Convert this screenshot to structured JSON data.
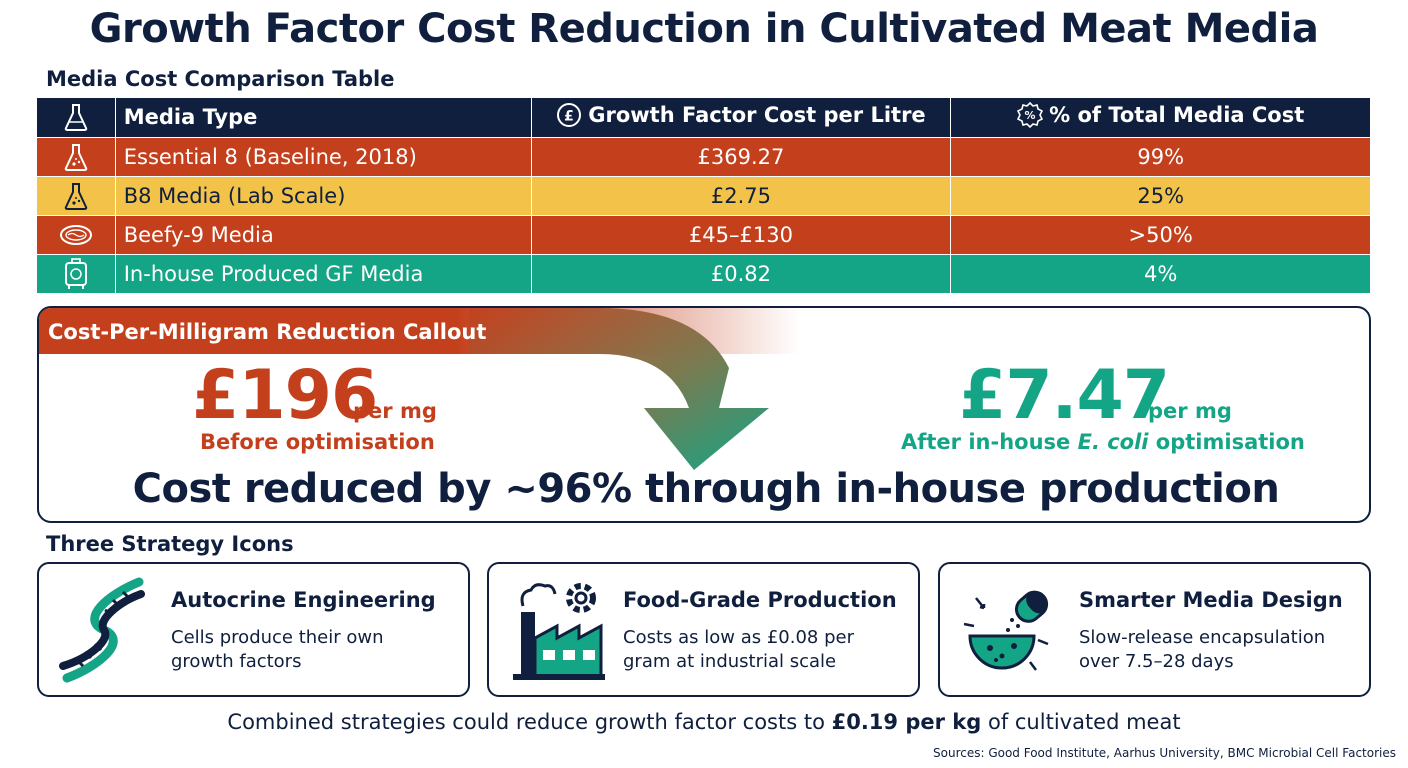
{
  "title": "Growth Factor Cost Reduction in Cultivated Meat Media",
  "table": {
    "heading": "Media Cost Comparison Table",
    "columns": {
      "type": "Media Type",
      "cost": "Growth Factor Cost per Litre",
      "percent": "% of Total Media Cost"
    },
    "rows": [
      {
        "type": "Essential 8 (Baseline, 2018)",
        "cost": "£369.27",
        "percent": "99%",
        "color": "#c4401d",
        "icon": "flask-icon"
      },
      {
        "type": "B8 Media (Lab Scale)",
        "cost": "£2.75",
        "percent": "25%",
        "color": "#f2c348",
        "icon": "flask-icon"
      },
      {
        "type": "Beefy-9 Media",
        "cost": "£45–£130",
        "percent": ">50%",
        "color": "#c4401d",
        "icon": "petri-dish-icon"
      },
      {
        "type": "In-house Produced GF Media",
        "cost": "£0.82",
        "percent": "4%",
        "color": "#14a586",
        "icon": "bioreactor-icon"
      }
    ]
  },
  "callout": {
    "heading": "Cost-Per-Milligram Reduction Callout",
    "before": {
      "price": "£196",
      "unit": "per mg",
      "label": "Before optimisation"
    },
    "after": {
      "price": "£7.47",
      "unit": "per mg",
      "label_pre": "After in-house ",
      "label_em": "E. coli",
      "label_post": " optimisation"
    },
    "summary": "Cost reduced by ~96% through in-house production"
  },
  "strategies": {
    "heading": "Three Strategy Icons",
    "cards": [
      {
        "title": "Autocrine Engineering",
        "desc_1": "Cells produce their own",
        "desc_2": "growth factors",
        "icon": "dna-icon"
      },
      {
        "title": "Food-Grade Production",
        "desc_1": "Costs as low as £0.08 per",
        "desc_2": "gram at industrial scale",
        "icon": "factory-icon"
      },
      {
        "title": "Smarter Media Design",
        "desc_1": "Slow-release encapsulation",
        "desc_2": "over 7.5–28 days",
        "icon": "capsule-icon"
      }
    ]
  },
  "footer": {
    "pre": "Combined strategies could reduce growth factor costs to ",
    "bold": "£0.19 per kg",
    "post": " of cultivated meat",
    "sources": "Sources: Good Food Institute, Aarhus University, BMC Microbial Cell Factories"
  },
  "colors": {
    "navy": "#0f1f3d",
    "red": "#c4401d",
    "yellow": "#f2c348",
    "green": "#14a586"
  }
}
